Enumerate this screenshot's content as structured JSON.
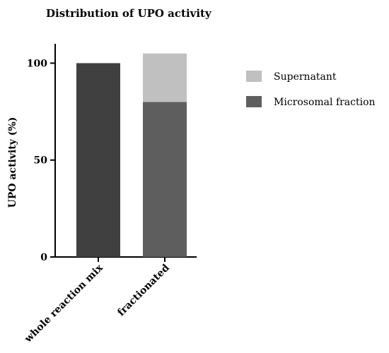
{
  "chart_data": {
    "type": "bar",
    "stacked": true,
    "title": "Distribution of UPO activity",
    "xlabel": "",
    "ylabel": "UPO activity (%)",
    "ylim": [
      0,
      110
    ],
    "yticks": [
      0,
      50,
      100
    ],
    "categories": [
      "whole reaction mix",
      "fractionated"
    ],
    "grid": false,
    "legend_position": "top-right",
    "bars": [
      {
        "category": "whole reaction mix",
        "segments": [
          {
            "name": "",
            "value": 100,
            "color": "#404040"
          }
        ]
      },
      {
        "category": "fractionated",
        "segments": [
          {
            "name": "Microsomal fraction",
            "value": 80,
            "color": "#5e5e5e"
          },
          {
            "name": "Supernatant",
            "value": 25,
            "color": "#c0c0c0"
          }
        ]
      }
    ],
    "legend": [
      {
        "name": "Supernatant",
        "color": "#c0c0c0"
      },
      {
        "name": "Microsomal fraction",
        "color": "#5e5e5e"
      }
    ]
  }
}
